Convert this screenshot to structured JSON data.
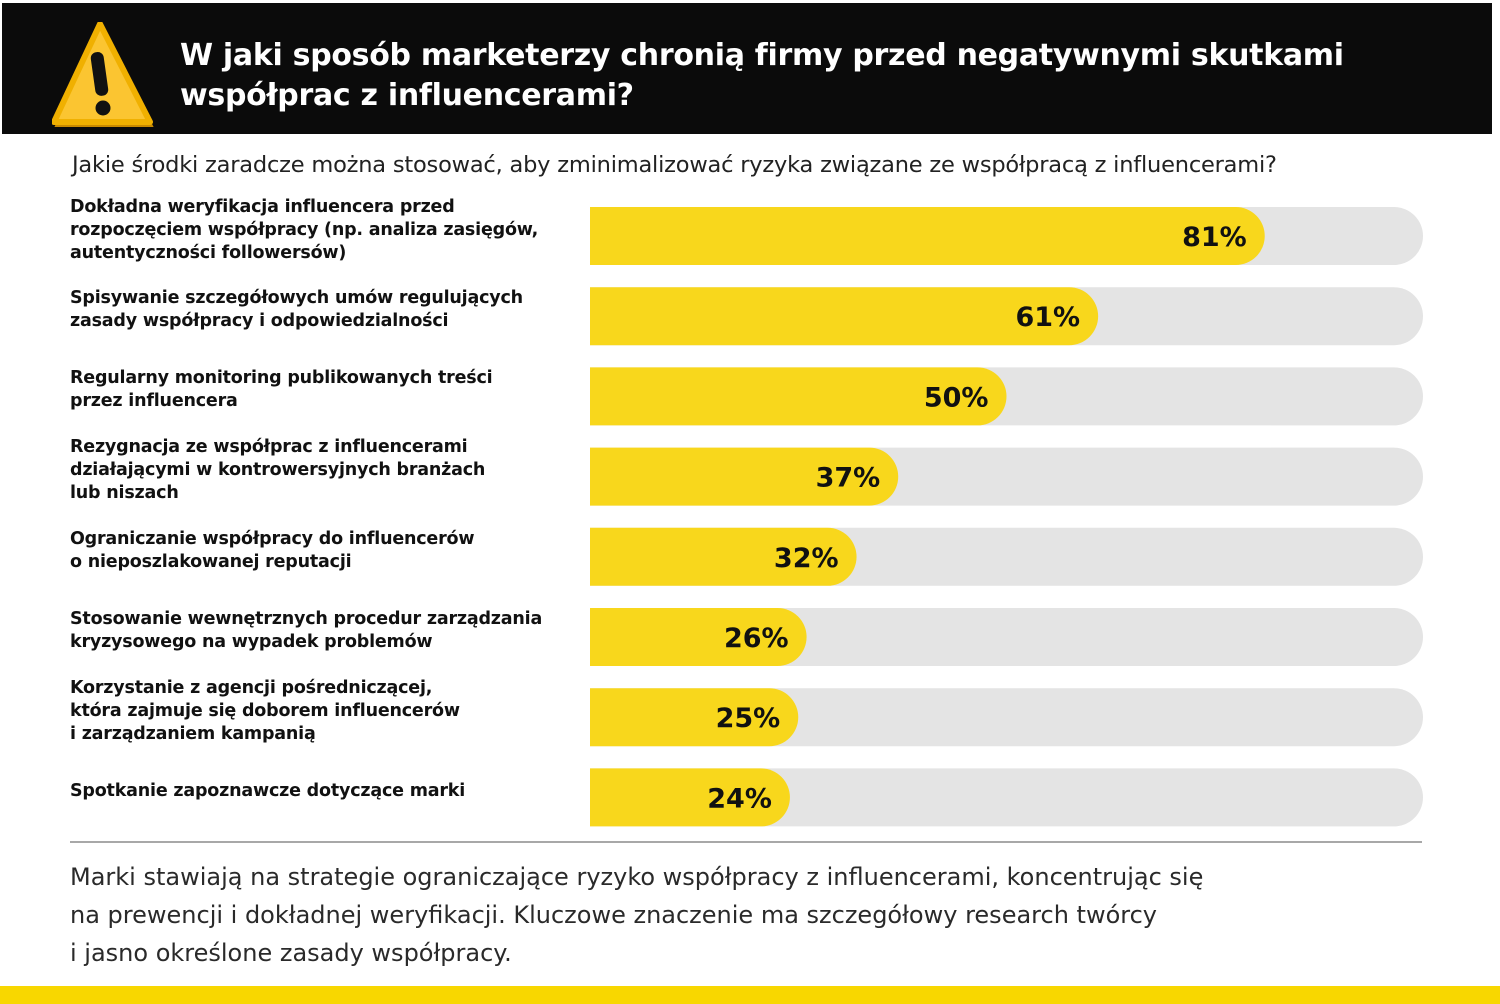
{
  "header": {
    "title": "W jaki sposób marketerzy chronią firmy przed negatywnymi skutkami\nwspółprac z influencerami?",
    "icon": "warning-triangle-icon"
  },
  "subtitle": "Jakie środki zaradcze można stosować, aby zminimalizować ryzyka związane ze współpracą z influencerami?",
  "colors": {
    "accent": "#f8d71c",
    "track": "#e4e4e4",
    "header_bg": "#0b0b0b",
    "text": "#111111"
  },
  "chart_data": {
    "type": "bar",
    "orientation": "horizontal",
    "categories": [
      "Dokładna weryfikacja influencera przed\nrozpoczęciem współpracy (np. analiza zasięgów,\nautentyczności followersów)",
      "Spisywanie szczegółowych umów regulujących\nzasady współpracy i odpowiedzialności",
      "Regularny monitoring publikowanych treści\nprzez influencera",
      "Rezygnacja ze współprac z influencerami\ndziałającymi w kontrowersyjnych branżach\nlub niszach",
      "Ograniczanie współpracy do influencerów\no nieposzlakowanej reputacji",
      "Stosowanie wewnętrznych procedur zarządzania\nkryzysowego na wypadek problemów",
      "Korzystanie z agencji pośredniczącej,\nktóra zajmuje się doborem influencerów\ni zarządzaniem kampanią",
      "Spotkanie zapoznawcze dotyczące marki"
    ],
    "values": [
      81,
      61,
      50,
      37,
      32,
      26,
      25,
      24
    ],
    "value_labels": [
      "81%",
      "61%",
      "50%",
      "37%",
      "32%",
      "26%",
      "25%",
      "24%"
    ],
    "xlim": [
      0,
      100
    ],
    "grid": false,
    "legend": "none"
  },
  "footnote": "Marki stawiają na strategie ograniczające ryzyko współpracy z influencerami, koncentrując się\nna prewencji i dokładnej weryfikacji. Kluczowe znaczenie ma szczegółowy research twórcy\ni jasno określone zasady współpracy."
}
